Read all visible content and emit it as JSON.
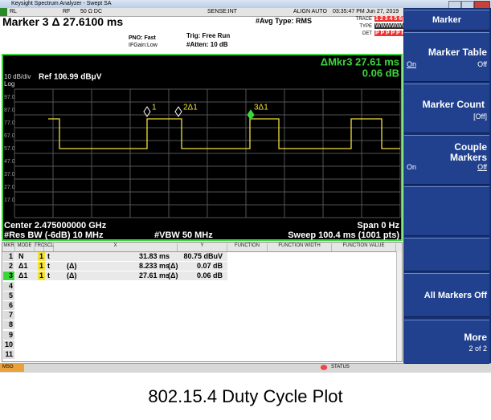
{
  "title_bar": {
    "title": "Keysight Spectrum Analyzer - Swept SA"
  },
  "status_row": {
    "rl": "RL",
    "rf": "RF",
    "coupling": "50 Ω  DC",
    "sense": "SENSE:INT",
    "align": "ALIGN AUTO",
    "time": "03:35:47 PM Jun 27, 2019"
  },
  "header": {
    "marker": "Marker 3 Δ 27.6100 ms",
    "pno": "PNO: Fast",
    "ifgain": "IFGain:Low",
    "trig": "Trig: Free Run",
    "atten": "#Atten: 10 dB",
    "avg": "#Avg Type: RMS",
    "trace_label": "TRACE",
    "trace": "1 2 3 4 5 6",
    "type_label": "TYPE",
    "type": "WWWWWW",
    "det_label": "DET",
    "det": "P P P P P P"
  },
  "display": {
    "delta_marker": "ΔMkr3 27.61 ms",
    "delta_value": "0.06 dB",
    "scale": "10 dB/div",
    "ref": "Ref 106.99 dBμV",
    "log": "Log",
    "y_labels": [
      "97.0",
      "87.0",
      "77.0",
      "67.0",
      "57.0",
      "47.0",
      "37.0",
      "27.0",
      "17.0"
    ],
    "markers": [
      "1",
      "2Δ1",
      "3Δ1"
    ],
    "center": "Center 2.475000000 GHz",
    "span": "Span 0 Hz",
    "res_bw": "#Res BW (-6dB) 10 MHz",
    "vbw": "#VBW 50 MHz",
    "sweep": "Sweep  100.4 ms (1001 pts)"
  },
  "table": {
    "columns": {
      "mkr": "MKR",
      "mode": "MODE",
      "trc": "TRC",
      "scl": "SCL",
      "x": "X",
      "y": "Y",
      "function": "FUNCTION",
      "function_width": "FUNCTION WIDTH",
      "function_value": "FUNCTION VALUE"
    },
    "rows": [
      {
        "mkr": "1",
        "mode": "N",
        "trc": "1",
        "scl": "t",
        "x": "31.83 ms",
        "y": "80.75 dBuV"
      },
      {
        "mkr": "2",
        "mode": "Δ1",
        "trc": "1",
        "scl": "t",
        "xref": "(Δ)",
        "x": "8.233 ms",
        "yref": "(Δ)",
        "y": "0.07 dB"
      },
      {
        "mkr": "3",
        "mode": "Δ1",
        "trc": "1",
        "scl": "t",
        "xref": "(Δ)",
        "x": "27.61 ms",
        "yref": "(Δ)",
        "y": "0.06 dB"
      },
      {
        "mkr": "4"
      },
      {
        "mkr": "5"
      },
      {
        "mkr": "6"
      },
      {
        "mkr": "7"
      },
      {
        "mkr": "8"
      },
      {
        "mkr": "9"
      },
      {
        "mkr": "10"
      },
      {
        "mkr": "11"
      }
    ]
  },
  "softkeys": {
    "header": "Marker",
    "marker_table": {
      "label": "Marker Table",
      "on": "On",
      "off": "Off"
    },
    "marker_count": {
      "label": "Marker Count",
      "state": "[Off]"
    },
    "couple_markers": {
      "label": "Couple Markers",
      "on": "On",
      "off": "Off"
    },
    "all_markers_off": "All Markers Off",
    "more": {
      "label": "More",
      "page": "2 of 2"
    }
  },
  "status_bar": {
    "msg": "MSG",
    "status": "STATUS"
  },
  "caption": "802.15.4 Duty Cycle Plot"
}
